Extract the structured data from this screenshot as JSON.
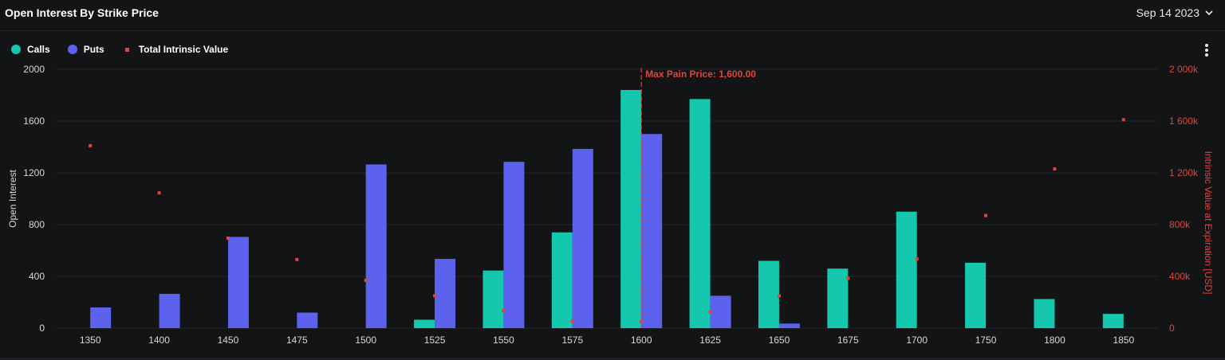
{
  "header": {
    "title": "Open Interest By Strike Price",
    "date": "Sep 14 2023"
  },
  "legend": {
    "calls": "Calls",
    "puts": "Puts",
    "intrinsic": "Total Intrinsic Value"
  },
  "colors": {
    "calls": "#14c7ad",
    "puts": "#5d62ee",
    "intrinsic": "#e0443c",
    "background": "#131416"
  },
  "chart_data": {
    "type": "bar",
    "title": "Open Interest By Strike Price",
    "xlabel": "",
    "ylabel": "Open Interest",
    "y2label": "Intrinsic Value at Expiration [USD]",
    "ylim": [
      0,
      2000
    ],
    "y2lim": [
      0,
      2000000
    ],
    "yticks": [
      "0",
      "400",
      "800",
      "1200",
      "1600",
      "2000"
    ],
    "y2ticks": [
      "0",
      "400k",
      "800k",
      "1 200k",
      "1 600k",
      "2 000k"
    ],
    "categories": [
      "1350",
      "1400",
      "1450",
      "1475",
      "1500",
      "1525",
      "1550",
      "1575",
      "1600",
      "1625",
      "1650",
      "1675",
      "1700",
      "1750",
      "1800",
      "1850"
    ],
    "series": [
      {
        "name": "Calls",
        "axis": "left",
        "values": [
          0,
          0,
          0,
          0,
          0,
          65,
          445,
          740,
          1840,
          1770,
          520,
          460,
          900,
          505,
          225,
          110
        ]
      },
      {
        "name": "Puts",
        "axis": "left",
        "values": [
          160,
          265,
          705,
          120,
          1265,
          535,
          1285,
          1385,
          1500,
          250,
          35,
          0,
          0,
          0,
          0,
          0
        ]
      },
      {
        "name": "Total Intrinsic Value",
        "axis": "right",
        "type": "scatter",
        "values": [
          1410000,
          1045000,
          695000,
          530000,
          370000,
          250000,
          135000,
          55000,
          50000,
          125000,
          250000,
          385000,
          535000,
          870000,
          1230000,
          1610000
        ]
      }
    ],
    "annotation": {
      "label": "Max Pain Price: 1,600.00",
      "category": "1600"
    },
    "legend_position": "top-left",
    "grid": true
  }
}
